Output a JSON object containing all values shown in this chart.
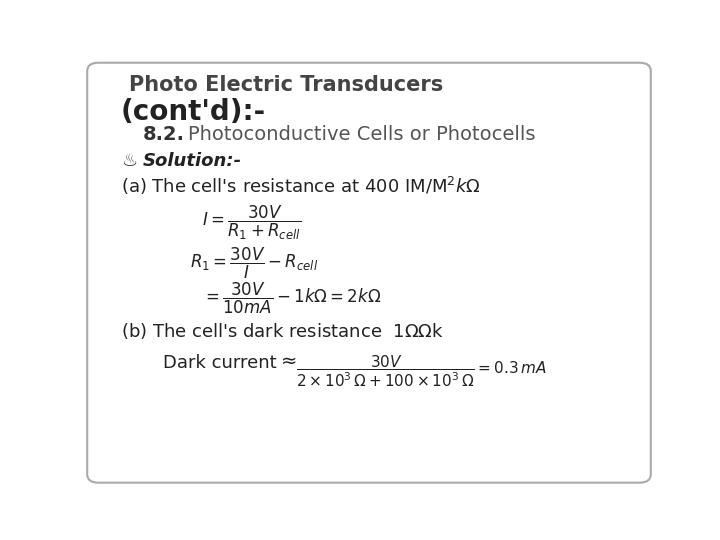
{
  "bg_color": "#ffffff",
  "border_color": "#aaaaaa",
  "title_line1": "Photo Electric Transducers",
  "title_line2": "(cont'd):-",
  "section_num": "8.2.",
  "section_text": "Photoconductive Cells or Photocells",
  "solution_symbol": "♨",
  "solution_text": "Solution:-",
  "part_a_text": "(a) The cell's resistance at 400 IM/M",
  "part_b_text": "(b) The cell's dark resistance  1",
  "dark_current_text": "Dark current"
}
